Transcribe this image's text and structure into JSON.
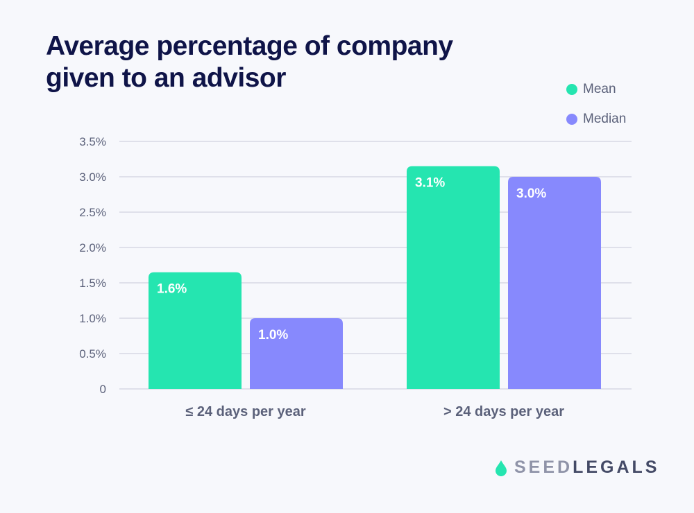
{
  "chart_data": {
    "type": "bar",
    "title": "Average percentage of company given to an advisor",
    "categories": [
      "≤ 24 days per year",
      "> 24 days per year"
    ],
    "series": [
      {
        "name": "Mean",
        "color": "#25e5b0",
        "values": [
          1.65,
          3.15
        ],
        "labels": [
          "1.6%",
          "3.1%"
        ]
      },
      {
        "name": "Median",
        "color": "#8789fd",
        "values": [
          1.0,
          3.0
        ],
        "labels": [
          "1.0%",
          "3.0%"
        ]
      }
    ],
    "ylim": [
      0,
      3.5
    ],
    "yticks": [
      0,
      0.5,
      1.0,
      1.5,
      2.0,
      2.5,
      3.0,
      3.5
    ],
    "ytick_labels": [
      "0",
      "0.5%",
      "1.0%",
      "1.5%",
      "2.0%",
      "2.5%",
      "3.0%",
      "3.5%"
    ],
    "grid": true,
    "legend_position": "top-right"
  },
  "branding": {
    "logo_part1": "SEED",
    "logo_part2": "LEGALS",
    "icon": "droplet-icon",
    "color_light": "#8f93a8",
    "color_dark": "#444a66"
  }
}
